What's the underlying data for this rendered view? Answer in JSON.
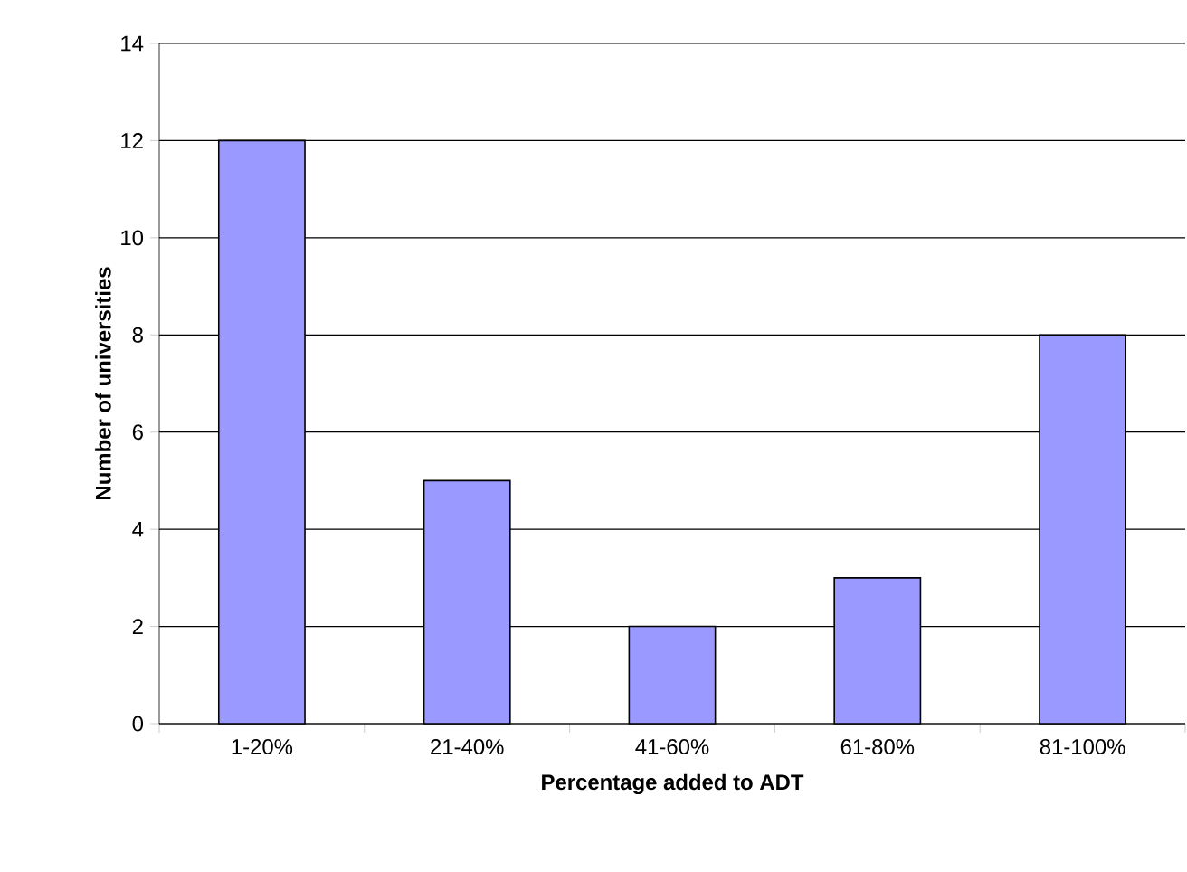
{
  "chart_data": {
    "type": "bar",
    "xlabel": "Percentage added to ADT",
    "ylabel": "Number of universities",
    "categories": [
      "1-20%",
      "21-40%",
      "41-60%",
      "61-80%",
      "81-100%"
    ],
    "values": [
      12,
      5,
      2,
      3,
      8
    ],
    "color": "#9999ff",
    "ylim": [
      0,
      14
    ],
    "yticks": [
      0,
      2,
      4,
      6,
      8,
      10,
      12,
      14
    ],
    "grid": "y"
  }
}
